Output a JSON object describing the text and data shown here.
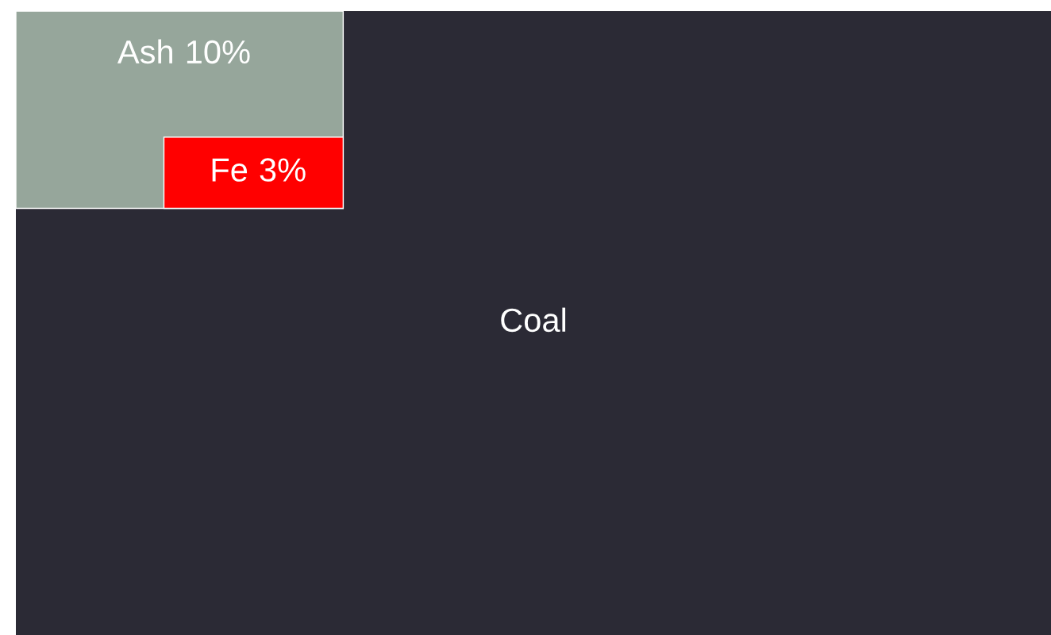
{
  "chart_data": {
    "type": "other",
    "categories": [
      "Coal",
      "Ash",
      "Fe"
    ],
    "values": [
      null,
      10,
      3
    ],
    "value_labels": [
      null,
      "10%",
      "3%"
    ],
    "colors": [
      "#2b2a35",
      "#96a69b",
      "#ff0000"
    ]
  }
}
